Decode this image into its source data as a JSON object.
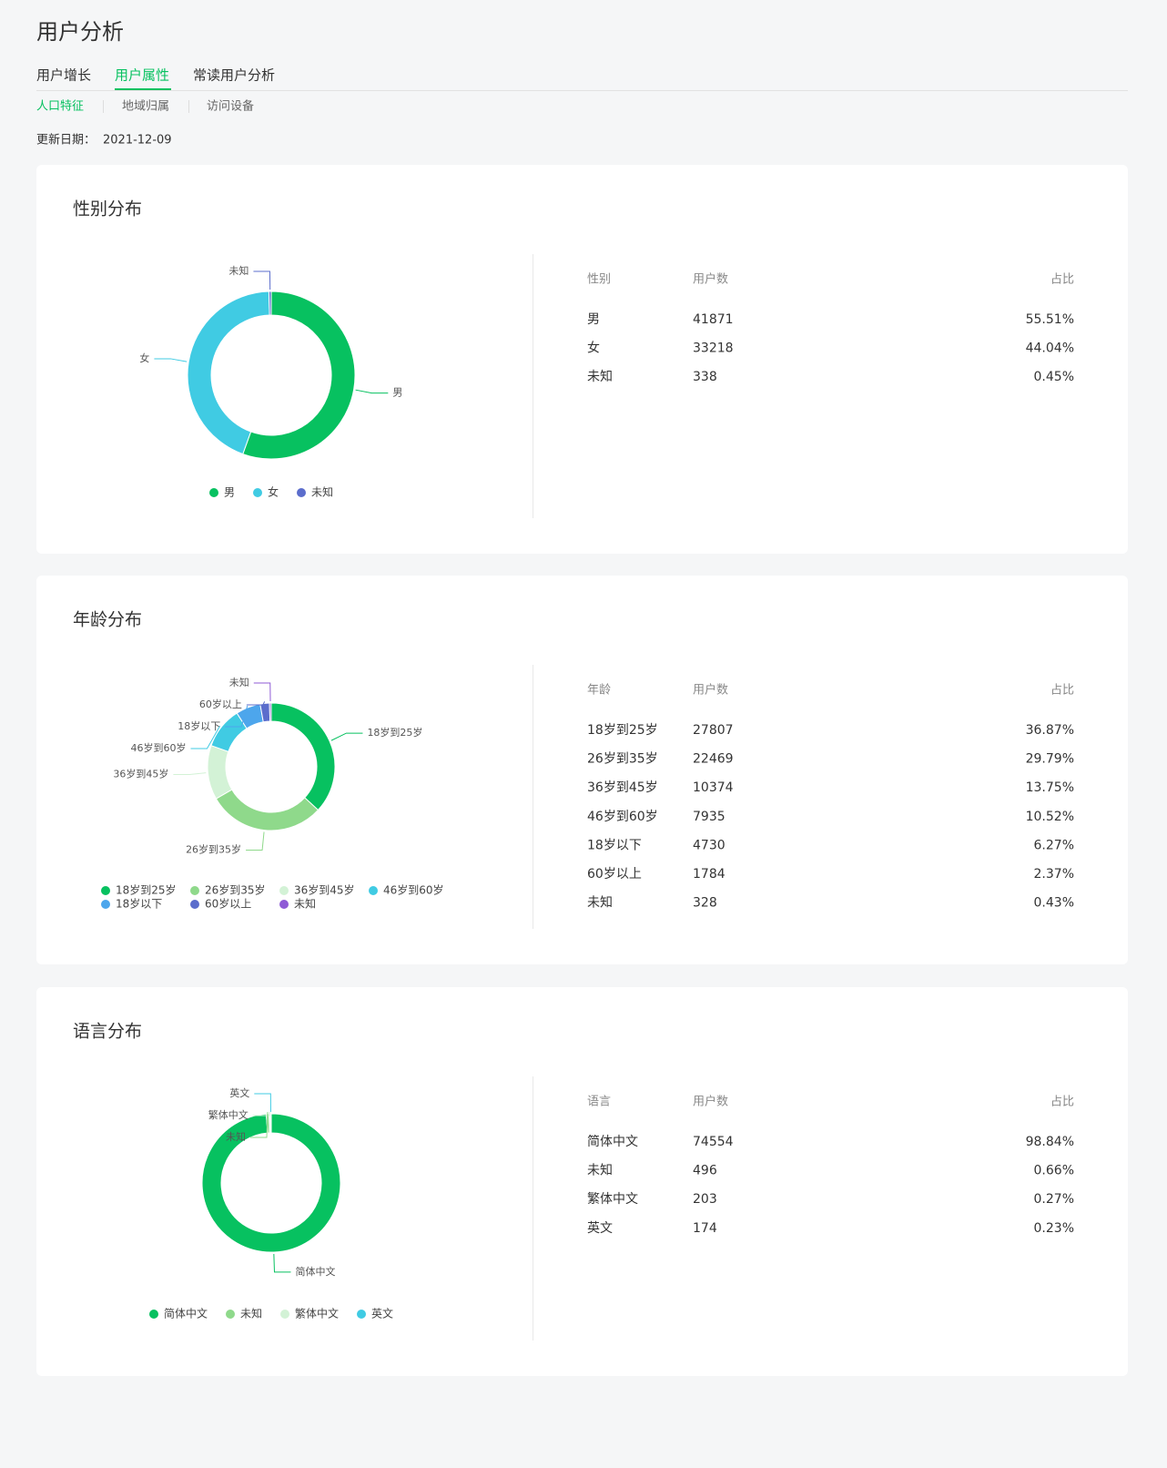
{
  "header": {
    "title": "用户分析",
    "tabs": [
      "用户增长",
      "用户属性",
      "常读用户分析"
    ],
    "subtabs": [
      "人口特征",
      "地域归属",
      "访问设备"
    ],
    "update_label": "更新日期：",
    "update_date": "2021-12-09"
  },
  "chart_data": [
    {
      "type": "donut",
      "title": "性别分布",
      "categories": [
        "男",
        "女",
        "未知"
      ],
      "values": [
        41871,
        33218,
        338
      ],
      "colors": [
        "#07c160",
        "#40cbe3",
        "#5b6dcc"
      ],
      "table_headers": [
        "性别",
        "用户数",
        "占比"
      ],
      "shares": [
        "55.51%",
        "44.04%",
        "0.45%"
      ]
    },
    {
      "type": "donut",
      "title": "年龄分布",
      "categories": [
        "18岁到25岁",
        "26岁到35岁",
        "36岁到45岁",
        "46岁到60岁",
        "18岁以下",
        "60岁以上",
        "未知"
      ],
      "values": [
        27807,
        22469,
        10374,
        7935,
        4730,
        1784,
        328
      ],
      "colors": [
        "#07c160",
        "#8fd98b",
        "#d3f2d6",
        "#40cbe3",
        "#4da6ec",
        "#5b6dcc",
        "#8f5bd6"
      ],
      "table_headers": [
        "年龄",
        "用户数",
        "占比"
      ],
      "shares": [
        "36.87%",
        "29.79%",
        "13.75%",
        "10.52%",
        "6.27%",
        "2.37%",
        "0.43%"
      ]
    },
    {
      "type": "donut",
      "title": "语言分布",
      "categories": [
        "简体中文",
        "未知",
        "繁体中文",
        "英文"
      ],
      "values": [
        74554,
        496,
        203,
        174
      ],
      "colors": [
        "#07c160",
        "#8fd98b",
        "#d3f2d6",
        "#40cbe3"
      ],
      "table_headers": [
        "语言",
        "用户数",
        "占比"
      ],
      "shares": [
        "98.84%",
        "0.66%",
        "0.27%",
        "0.23%"
      ]
    }
  ]
}
